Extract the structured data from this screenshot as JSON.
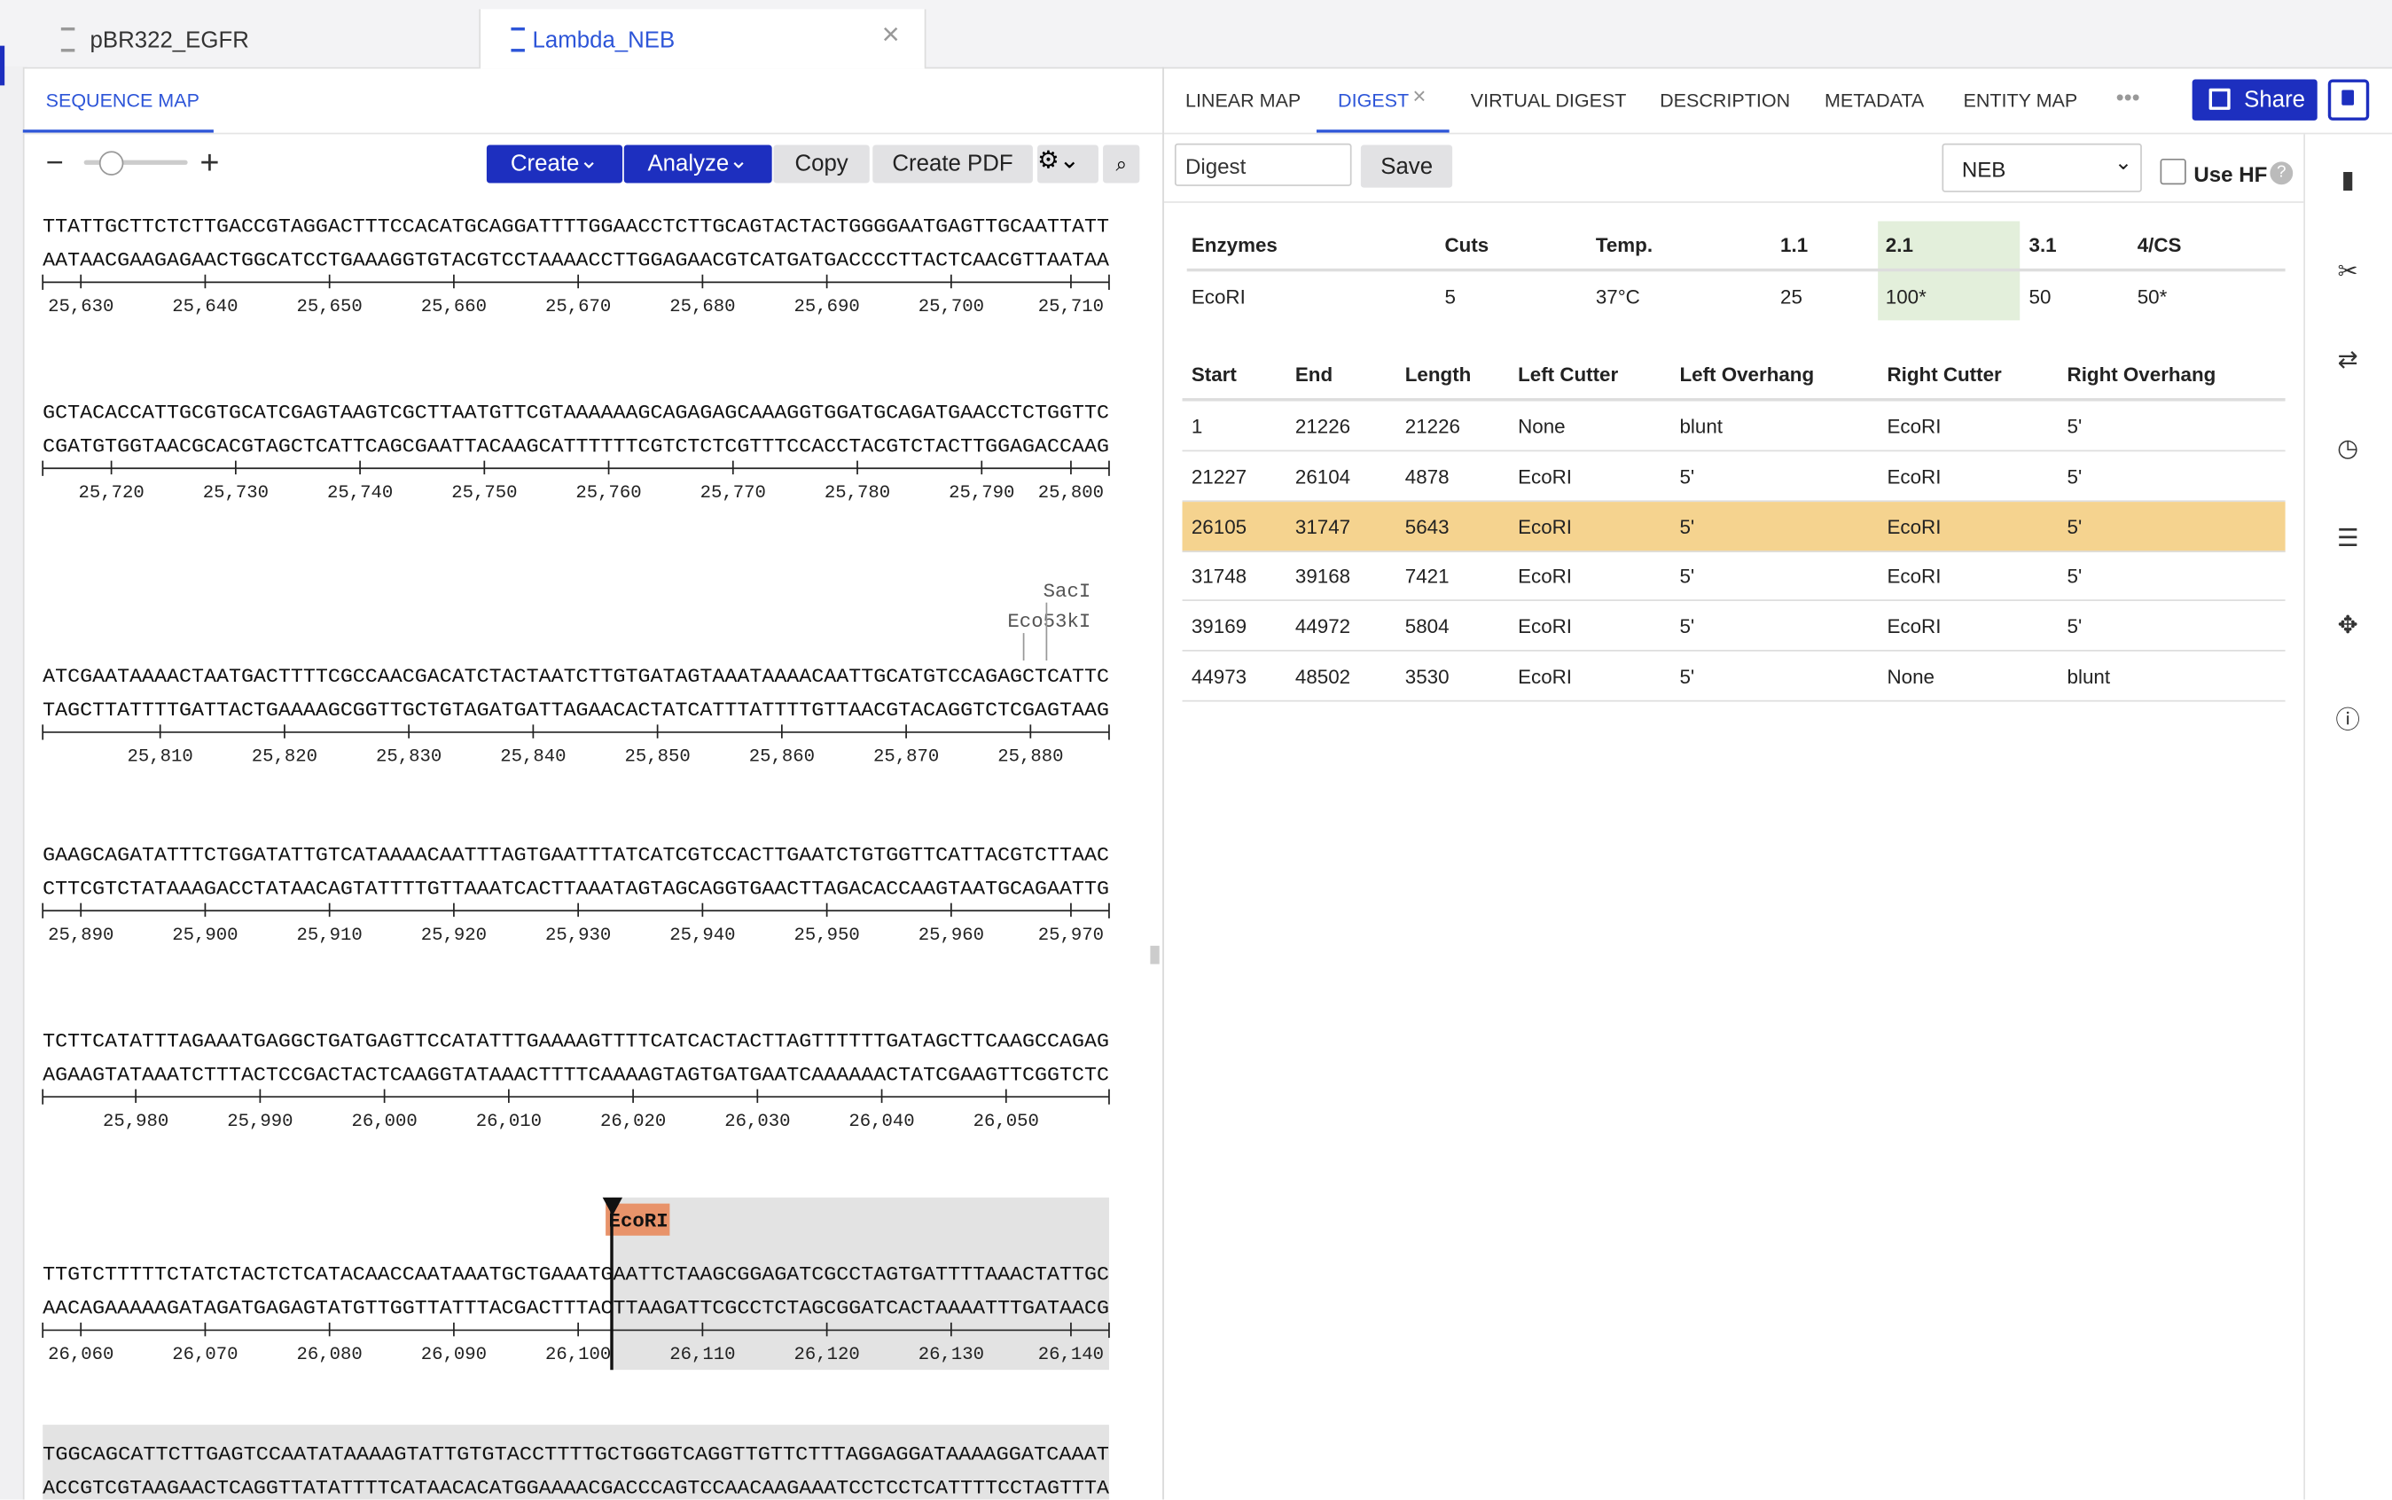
{
  "tabs": [
    "pBR322_EGFR",
    "Lambda_NEB"
  ],
  "left": {
    "tab": "SEQUENCE MAP",
    "buttons": [
      "Create",
      "Analyze",
      "Copy",
      "Create PDF"
    ],
    "blocks": [
      {
        "top": "TTATTGCTTCTCTTGACCGTAGGACTTTCCACATGCAGGATTTTGGAACCTCTTGCAGTACTACTGGGGAATGAGTTGCAATTATT",
        "bottom": "AATAACGAAGAGAACTGGCATCCTGAAAGGTGTACGTCCTAAAACCTTGGAGAACGTCATGATGACCCCTTACTCAACGTTAATAA",
        "ticks": [
          "25,630",
          "25,640",
          "25,650",
          "25,660",
          "25,670",
          "25,680",
          "25,690",
          "25,700",
          "25,710"
        ]
      },
      {
        "top": "GCTACACCATTGCGTGCATCGAGTAAGTCGCTTAATGTTCGTAAAAAAGCAGAGAGCAAAGGTGGATGCAGATGAACCTCTGGTTC",
        "bottom": "CGATGTGGTAACGCACGTAGCTCATTCAGCGAATTACAAGCATTTTTTCGTCTCTCGTTTCCACCTACGTCTACTTGGAGACCAAG",
        "ticks": [
          "25,720",
          "25,730",
          "25,740",
          "25,750",
          "25,760",
          "25,770",
          "25,780",
          "25,790",
          "25,800"
        ]
      },
      {
        "enzymes": [
          "SacI",
          "Eco53kI"
        ],
        "top": "ATCGAATAAAACTAATGACTTTTCGCCAACGACATCTACTAATCTTGTGATAGTAAATAAAACAATTGCATGTCCAGAGCTCATTC",
        "bottom": "TAGCTTATTTTGATTACTGAAAAGCGGTTGCTGTAGATGATTAGAACACTATCATTTATTTTGTTAACGTACAGGTCTCGAGTAAG",
        "ticks": [
          "25,810",
          "25,820",
          "25,830",
          "25,840",
          "25,850",
          "25,860",
          "25,870",
          "25,880"
        ]
      },
      {
        "top": "GAAGCAGATATTTCTGGATATTGTCATAAAACAATTTAGTGAATTTATCATCGTCCACTTGAATCTGTGGTTCATTACGTCTTAAC",
        "bottom": "CTTCGTCTATAAAGACCTATAACAGTATTTTGTTAAATCACTTAAATAGTAGCAGGTGAACTTAGACACCAAGTAATGCAGAATTG",
        "ticks": [
          "25,890",
          "25,900",
          "25,910",
          "25,920",
          "25,930",
          "25,940",
          "25,950",
          "25,960",
          "25,970"
        ]
      },
      {
        "top": "TCTTCATATTTAGAAATGAGGCTGATGAGTTCCATATTTGAAAAGTTTTCATCACTACTTAGTTTTTTGATAGCTTCAAGCCAGAG",
        "bottom": "AGAAGTATAAATCTTTACTCCGACTACTCAAGGTATAAACTTTTCAAAAGTAGTGATGAATCAAAAAACTATCGAAGTTCGGTCTC",
        "ticks": [
          "25,980",
          "25,990",
          "26,000",
          "26,010",
          "26,020",
          "26,030",
          "26,040",
          "26,050"
        ]
      },
      {
        "enzymes": [
          "EcoRI"
        ],
        "top": "TTGTCTTTTTCTATCTACTCTCATACAACCAATAAATGCTGAAATGAATTCTAAGCGGAGATCGCCTAGTGATTTTAAACTATTGC",
        "bottom": "AACAGAAAAAGATAGATGAGAGTATGTTGGTTATTTACGACTTTACTTAAGATTCGCCTCTAGCGGATCACTAAAATTTGATAACG",
        "ticks": [
          "26,060",
          "26,070",
          "26,080",
          "26,090",
          "26,100",
          "26,110",
          "26,120",
          "26,130",
          "26,140"
        ]
      },
      {
        "top": "TGGCAGCATTCTTGAGTCCAATATAAAAGTATTGTGTACCTTTTGCTGGGTCAGGTTGTTCTTTAGGAGGATAAAAGGATCAAAT",
        "bottom": "ACCGTCGTAAGAACTCAGGTTATATTTTCATAACACATGGAAAACGACCCAGTCCAACAAGAAATCCTCCTCATTTTCCTAGTTTA",
        "ticks": []
      }
    ]
  },
  "right": {
    "tabs": [
      "LINEAR MAP",
      "DIGEST",
      "VIRTUAL DIGEST",
      "DESCRIPTION",
      "METADATA",
      "ENTITY MAP"
    ],
    "share": "Share",
    "digest_input": "Digest",
    "save": "Save",
    "buffer": "NEB",
    "use_hf": "Use HF",
    "enzyme_table": {
      "headers": [
        "Enzymes",
        "Cuts",
        "Temp.",
        "1.1",
        "2.1",
        "3.1",
        "4/CS"
      ],
      "rows": [
        [
          "EcoRI",
          5,
          "37°C",
          25,
          "100*",
          50,
          "50*"
        ]
      ]
    },
    "fragment_table": {
      "headers": [
        "Start",
        "End",
        "Length",
        "Left Cutter",
        "Left Overhang",
        "Right Cutter",
        "Right Overhang"
      ],
      "rows": [
        [
          1,
          21226,
          21226,
          "None",
          "blunt",
          "EcoRI",
          "5'"
        ],
        [
          21227,
          26104,
          4878,
          "EcoRI",
          "5'",
          "EcoRI",
          "5'"
        ],
        [
          26105,
          31747,
          5643,
          "EcoRI",
          "5'",
          "EcoRI",
          "5'"
        ],
        [
          31748,
          39168,
          7421,
          "EcoRI",
          "5'",
          "EcoRI",
          "5'"
        ],
        [
          39169,
          44972,
          5804,
          "EcoRI",
          "5'",
          "EcoRI",
          "5'"
        ],
        [
          44973,
          48502,
          3530,
          "EcoRI",
          "5'",
          "None",
          "blunt"
        ]
      ]
    }
  }
}
